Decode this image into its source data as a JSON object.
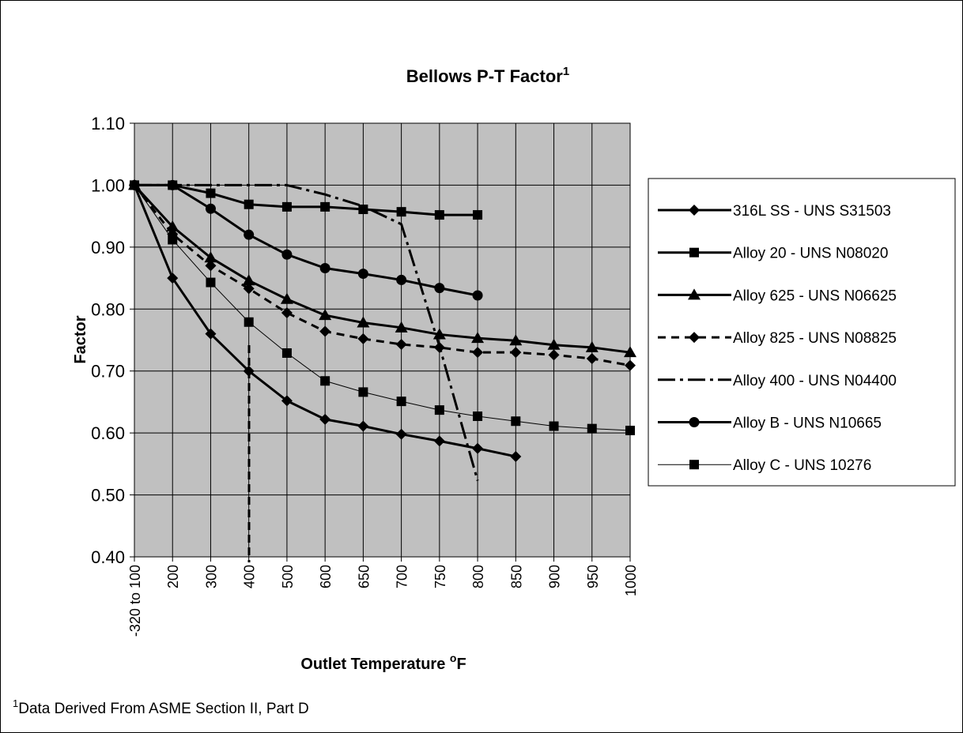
{
  "chart_data": {
    "type": "line",
    "title": "Bellows P-T Factor",
    "title_superscript": "1",
    "x_label": "Outlet Temperature ",
    "x_label_superscript": "o",
    "x_label_unit": "F",
    "y_label": "Factor",
    "footnote_marker": "1",
    "footnote": "Data Derived From ASME Section II, Part D",
    "categories": [
      "-320 to 100",
      "200",
      "300",
      "400",
      "500",
      "600",
      "650",
      "700",
      "750",
      "800",
      "850",
      "900",
      "950",
      "1000"
    ],
    "ylim": [
      0.4,
      1.1
    ],
    "yticks": [
      {
        "value": 0.4,
        "label": "0.40"
      },
      {
        "value": 0.5,
        "label": "0.50"
      },
      {
        "value": 0.6,
        "label": "0.60"
      },
      {
        "value": 0.7,
        "label": "0.70"
      },
      {
        "value": 0.8,
        "label": "0.80"
      },
      {
        "value": 0.9,
        "label": "0.90"
      },
      {
        "value": 1.0,
        "label": "1.00"
      },
      {
        "value": 1.1,
        "label": "1.10"
      }
    ],
    "grid": true,
    "legend": "right",
    "series": [
      {
        "name": "316L SS - UNS S31503",
        "color": "#000000",
        "marker": "diamond",
        "dash": "solid",
        "width": 3,
        "values": [
          1.0,
          0.85,
          0.76,
          0.7,
          0.652,
          0.622,
          0.611,
          0.598,
          0.587,
          0.575,
          0.562,
          null,
          null,
          null
        ]
      },
      {
        "name": "Alloy 20 - UNS N08020",
        "color": "#000000",
        "marker": "square",
        "dash": "solid",
        "width": 3,
        "values": [
          1.0,
          1.0,
          0.987,
          0.969,
          0.965,
          0.965,
          0.961,
          0.957,
          0.952,
          0.952,
          null,
          null,
          null,
          null
        ]
      },
      {
        "name": "Alloy 625 - UNS N06625",
        "color": "#000000",
        "marker": "triangle",
        "dash": "solid",
        "width": 3,
        "values": [
          1.0,
          0.933,
          0.883,
          0.846,
          0.816,
          0.79,
          0.778,
          0.77,
          0.759,
          0.753,
          0.749,
          0.742,
          0.738,
          0.73
        ]
      },
      {
        "name": "Alloy 825 - UNS N08825",
        "color": "#000000",
        "marker": "diamond",
        "dash": "dash",
        "width": 3,
        "values": [
          1.0,
          0.921,
          0.87,
          0.833,
          0.794,
          0.764,
          0.752,
          0.743,
          0.738,
          0.73,
          0.73,
          0.726,
          0.72,
          0.709
        ]
      },
      {
        "name": "Alloy 400 - UNS N04400",
        "color": "#000000",
        "marker": "none",
        "dash": "dashdot",
        "width": 3,
        "values": [
          1.0,
          1.0,
          1.0,
          1.0,
          1.0,
          0.985,
          0.966,
          0.937,
          0.74,
          0.523,
          null,
          null,
          null,
          null
        ]
      },
      {
        "name": "Alloy B - UNS N10665",
        "color": "#000000",
        "marker": "circle",
        "dash": "solid",
        "width": 3,
        "values": [
          1.0,
          1.0,
          0.962,
          0.92,
          0.888,
          0.866,
          0.857,
          0.847,
          0.834,
          0.822,
          null,
          null,
          null,
          null
        ]
      },
      {
        "name": "Alloy C - UNS 10276",
        "color": "#000000",
        "marker": "square",
        "dash": "solid",
        "width": 1,
        "values": [
          1.0,
          0.912,
          0.843,
          0.779,
          0.729,
          0.684,
          0.666,
          0.651,
          0.637,
          0.627,
          0.619,
          0.611,
          0.607,
          0.604
        ]
      }
    ]
  }
}
